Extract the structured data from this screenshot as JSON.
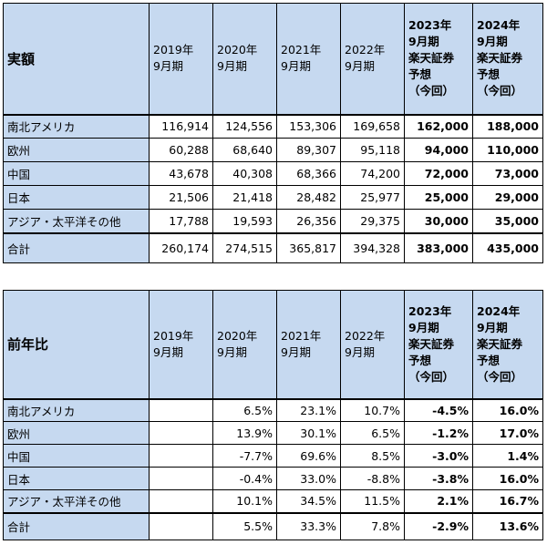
{
  "tables": [
    {
      "corner": "実額",
      "columns": [
        [
          "2019年",
          "9月期"
        ],
        [
          "2020年",
          "9月期"
        ],
        [
          "2021年",
          "9月期"
        ],
        [
          "2022年",
          "9月期"
        ],
        [
          "2023年",
          "9月期",
          "楽天証券",
          "予想",
          "（今回）"
        ],
        [
          "2024年",
          "9月期",
          "楽天証券",
          "予想",
          "（今回）"
        ]
      ],
      "rows": [
        {
          "label": "南北アメリカ",
          "values": [
            "116,914",
            "124,556",
            "153,306",
            "169,658",
            "162,000",
            "188,000"
          ]
        },
        {
          "label": "欧州",
          "values": [
            "60,288",
            "68,640",
            "89,307",
            "95,118",
            "94,000",
            "110,000"
          ]
        },
        {
          "label": "中国",
          "values": [
            "43,678",
            "40,308",
            "68,366",
            "74,200",
            "72,000",
            "73,000"
          ]
        },
        {
          "label": "日本",
          "values": [
            "21,506",
            "21,418",
            "28,482",
            "25,977",
            "25,000",
            "29,000"
          ]
        },
        {
          "label": "アジア・太平洋その他",
          "values": [
            "17,788",
            "19,593",
            "26,356",
            "29,375",
            "30,000",
            "35,000"
          ]
        }
      ],
      "total": {
        "label": "合計",
        "values": [
          "260,174",
          "274,515",
          "365,817",
          "394,328",
          "383,000",
          "435,000"
        ]
      }
    },
    {
      "corner": "前年比",
      "columns": [
        [
          "2019年",
          "9月期"
        ],
        [
          "2020年",
          "9月期"
        ],
        [
          "2021年",
          "9月期"
        ],
        [
          "2022年",
          "9月期"
        ],
        [
          "2023年",
          "9月期",
          "楽天証券",
          "予想",
          "（今回）"
        ],
        [
          "2024年",
          "9月期",
          "楽天証券",
          "予想",
          "（今回）"
        ]
      ],
      "rows": [
        {
          "label": "南北アメリカ",
          "values": [
            null,
            "6.5%",
            "23.1%",
            "10.7%",
            "-4.5%",
            "16.0%"
          ]
        },
        {
          "label": "欧州",
          "values": [
            null,
            "13.9%",
            "30.1%",
            "6.5%",
            "-1.2%",
            "17.0%"
          ]
        },
        {
          "label": "中国",
          "values": [
            null,
            "-7.7%",
            "69.6%",
            "8.5%",
            "-3.0%",
            "1.4%"
          ]
        },
        {
          "label": "日本",
          "values": [
            null,
            "-0.4%",
            "33.0%",
            "-8.8%",
            "-3.8%",
            "16.0%"
          ]
        },
        {
          "label": "アジア・太平洋その他",
          "values": [
            null,
            "10.1%",
            "34.5%",
            "11.5%",
            "2.1%",
            "16.7%"
          ]
        }
      ],
      "total": {
        "label": "合計",
        "values": [
          null,
          "5.5%",
          "33.3%",
          "7.8%",
          "-2.9%",
          "13.6%"
        ]
      }
    }
  ]
}
